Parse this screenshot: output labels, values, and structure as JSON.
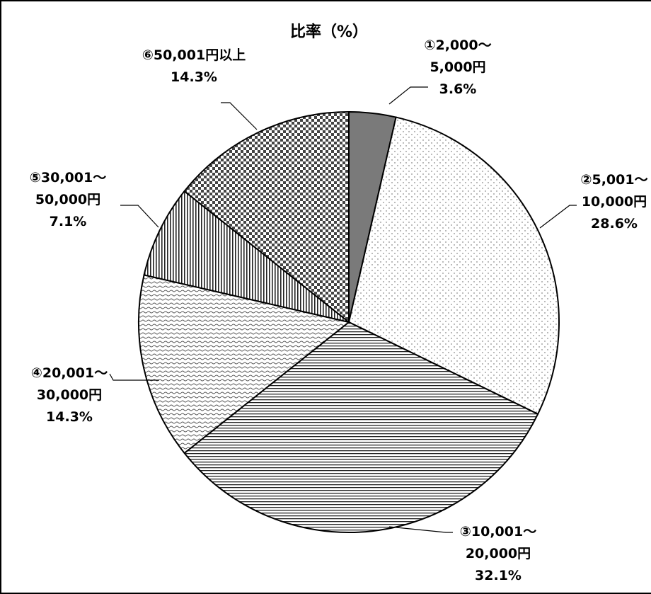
{
  "chart_data": {
    "type": "pie",
    "title": "比率（%）",
    "start_angle_deg": 0,
    "direction": "clockwise",
    "slices": [
      {
        "label_lines": [
          "①2,000～",
          "5,000円"
        ],
        "value_text": "3.6%",
        "value": 3.6,
        "pattern": "solid-gray",
        "color": "#7a7a7a"
      },
      {
        "label_lines": [
          "②5,001～",
          "10,000円"
        ],
        "value_text": "28.6%",
        "value": 28.6,
        "pattern": "dots",
        "color": "#ffffff"
      },
      {
        "label_lines": [
          "③10,001～",
          "20,000円"
        ],
        "value_text": "32.1%",
        "value": 32.1,
        "pattern": "horizontal-lines",
        "color": "#ffffff"
      },
      {
        "label_lines": [
          "④20,001～",
          "30,000円"
        ],
        "value_text": "14.3%",
        "value": 14.3,
        "pattern": "waves",
        "color": "#ffffff"
      },
      {
        "label_lines": [
          "⑤30,001～",
          "50,000円"
        ],
        "value_text": "7.1%",
        "value": 7.1,
        "pattern": "vertical-lines",
        "color": "#ffffff"
      },
      {
        "label_lines": [
          "⑥50,001円以上"
        ],
        "value_text": "14.3%",
        "value": 14.3,
        "pattern": "checker",
        "color": "#ffffff"
      }
    ]
  }
}
